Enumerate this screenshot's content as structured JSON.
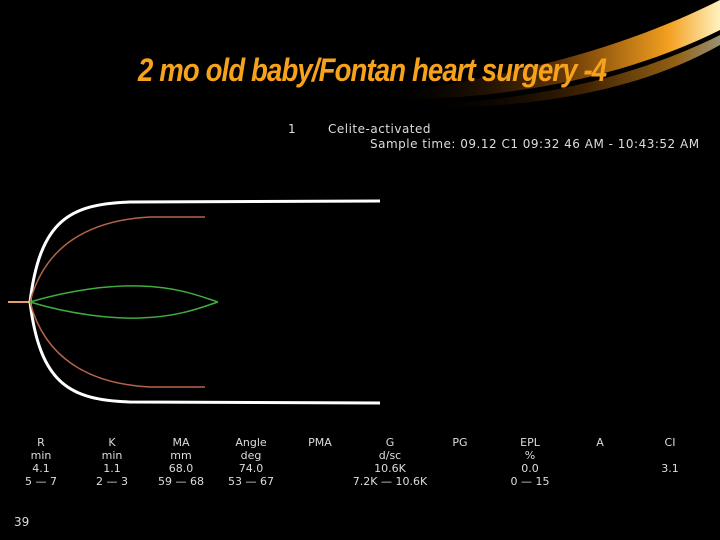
{
  "slide": {
    "title": "2 mo old baby/Fontan heart surgery -4",
    "channel": "1",
    "test_type": "Celite-activated",
    "sample_time": "Sample time: 09.12 C1 09:32 46 AM - 10:43:52 AM",
    "slide_number": "39"
  },
  "colors": {
    "accent": "#f7a21b",
    "trace_white": "#ffffff",
    "trace_brown": "#b5654a",
    "trace_green": "#3fae3f"
  },
  "params": [
    {
      "name": "R",
      "unit": "min",
      "value": "4.1",
      "range": "5 — 7"
    },
    {
      "name": "K",
      "unit": "min",
      "value": "1.1",
      "range": "2 — 3"
    },
    {
      "name": "MA",
      "unit": "mm",
      "value": "68.0",
      "range": "59 — 68"
    },
    {
      "name": "Angle",
      "unit": "deg",
      "value": "74.0",
      "range": "53 — 67"
    },
    {
      "name": "PMA",
      "unit": "",
      "value": "",
      "range": ""
    },
    {
      "name": "G",
      "unit": "d/sc",
      "value": "10.6K",
      "range": "7.2K — 10.6K"
    },
    {
      "name": "PG",
      "unit": "",
      "value": "",
      "range": ""
    },
    {
      "name": "EPL",
      "unit": "%",
      "value": "0.0",
      "range": "0 — 15"
    },
    {
      "name": "A",
      "unit": "",
      "value": "",
      "range": ""
    },
    {
      "name": "CI",
      "unit": "",
      "value": "3.1",
      "range": ""
    }
  ]
}
